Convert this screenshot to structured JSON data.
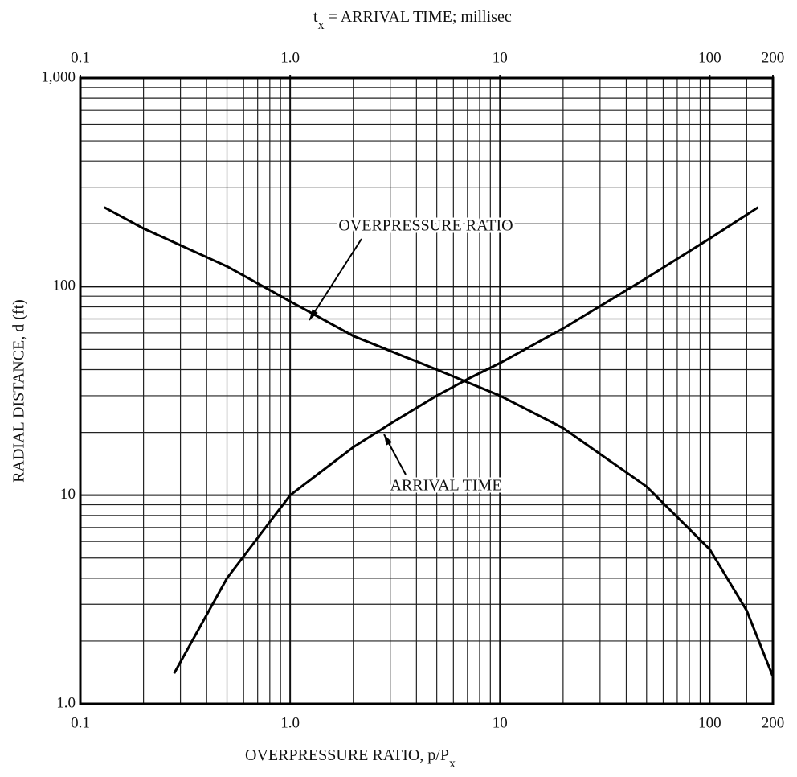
{
  "chart_data": {
    "type": "line",
    "top_axis_label": {
      "main": "t",
      "sub": "x",
      "rest": " = ARRIVAL TIME; millisec"
    },
    "x_label": {
      "main": "OVERPRESSURE RATIO, p/P",
      "sub": "x"
    },
    "y_label": "RADIAL DISTANCE, d (ft)",
    "log_x": true,
    "log_y": true,
    "grid": true,
    "xlim": [
      0.1,
      200
    ],
    "xticks": [
      0.1,
      {
        "value": 1,
        "label": "1.0"
      },
      10,
      100,
      200
    ],
    "x2lim": [
      0.1,
      200
    ],
    "x2ticks": [
      0.1,
      {
        "value": 1,
        "label": "1.0"
      },
      10,
      100,
      200
    ],
    "xgrid": [
      0.2,
      0.3,
      0.4,
      0.5,
      0.6,
      0.7,
      0.8,
      0.9,
      2,
      3,
      4,
      5,
      6,
      7,
      8,
      9,
      20,
      30,
      40,
      50,
      60,
      70,
      80,
      90,
      150
    ],
    "ylim": [
      1,
      1000
    ],
    "yticks": [
      {
        "value": 1,
        "label": "1.0"
      },
      10,
      100,
      {
        "value": 1000,
        "label": "1,000"
      }
    ],
    "ygrid": [
      2,
      3,
      4,
      5,
      6,
      7,
      8,
      9,
      20,
      30,
      40,
      50,
      60,
      70,
      80,
      90,
      200,
      300,
      400,
      500,
      600,
      700,
      800,
      900
    ],
    "series": [
      {
        "name": "OVERPRESSURE RATIO",
        "color": "#000000",
        "axis": "x",
        "x": [
          0.13,
          0.2,
          0.5,
          1,
          2,
          5,
          10,
          20,
          50,
          100,
          150,
          200
        ],
        "values": [
          240,
          190,
          125,
          85,
          58,
          40,
          30,
          21,
          11,
          5.5,
          2.8,
          1.35
        ]
      },
      {
        "name": "ARRIVAL TIME",
        "color": "#000000",
        "axis": "x2",
        "x": [
          0.28,
          0.5,
          1,
          2,
          3,
          5,
          7,
          10,
          20,
          50,
          100,
          170
        ],
        "values": [
          1.4,
          4,
          10,
          17,
          22,
          30,
          36,
          43,
          63,
          110,
          170,
          240
        ]
      }
    ]
  }
}
